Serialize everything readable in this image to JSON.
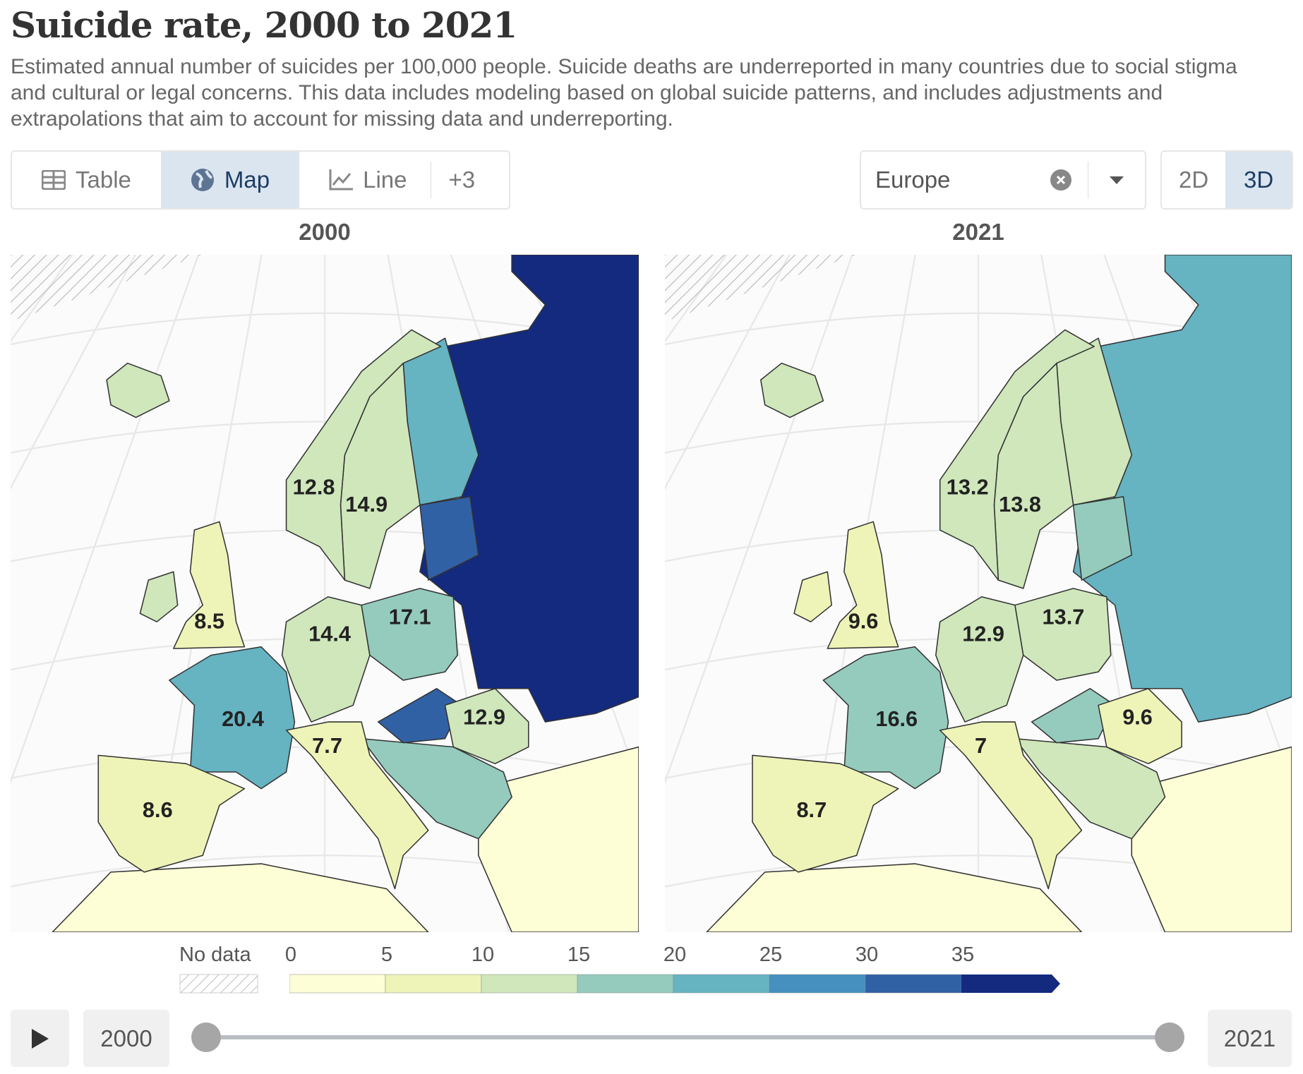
{
  "title": "Suicide rate, 2000 to 2021",
  "subtitle": "Estimated annual number of suicides per 100,000 people. Suicide deaths are underreported in many countries due to social stigma and cultural or legal concerns. This data includes modeling based on global suicide patterns, and includes adjustments and extrapolations that aim to account for missing data and underreporting.",
  "tabs": [
    {
      "label": "Table",
      "icon": "table-icon"
    },
    {
      "label": "Map",
      "icon": "globe-icon",
      "active": true
    },
    {
      "label": "Line",
      "icon": "line-chart-icon"
    },
    {
      "label": "+3"
    }
  ],
  "region_select": {
    "value": "Europe"
  },
  "projection": {
    "options": [
      "2D",
      "3D"
    ],
    "selected": "3D"
  },
  "maps": [
    {
      "year": "2000",
      "labels": [
        {
          "country": "Norway",
          "value": "12.8"
        },
        {
          "country": "Sweden",
          "value": "14.9"
        },
        {
          "country": "United Kingdom",
          "value": "8.5"
        },
        {
          "country": "Germany",
          "value": "14.4"
        },
        {
          "country": "Poland",
          "value": "17.1"
        },
        {
          "country": "France",
          "value": "20.4"
        },
        {
          "country": "Italy",
          "value": "7.7"
        },
        {
          "country": "Spain",
          "value": "8.6"
        },
        {
          "country": "Romania",
          "value": "12.9"
        }
      ]
    },
    {
      "year": "2021",
      "labels": [
        {
          "country": "Norway",
          "value": "13.2"
        },
        {
          "country": "Sweden",
          "value": "13.8"
        },
        {
          "country": "United Kingdom",
          "value": "9.6"
        },
        {
          "country": "Germany",
          "value": "12.9"
        },
        {
          "country": "Poland",
          "value": "13.7"
        },
        {
          "country": "France",
          "value": "16.6"
        },
        {
          "country": "Italy",
          "value": "7"
        },
        {
          "country": "Spain",
          "value": "8.7"
        },
        {
          "country": "Romania",
          "value": "9.6"
        }
      ]
    }
  ],
  "legend": {
    "no_data": "No data",
    "ticks": [
      "0",
      "5",
      "10",
      "15",
      "20",
      "25",
      "30",
      "35"
    ],
    "colors": [
      "#fdfdd6",
      "#eef4b7",
      "#cfe7bb",
      "#94cbbd",
      "#66b3c2",
      "#4590bf",
      "#3161a5",
      "#132a7f"
    ]
  },
  "timeline": {
    "start": "2000",
    "end": "2021",
    "play": "play-icon"
  }
}
